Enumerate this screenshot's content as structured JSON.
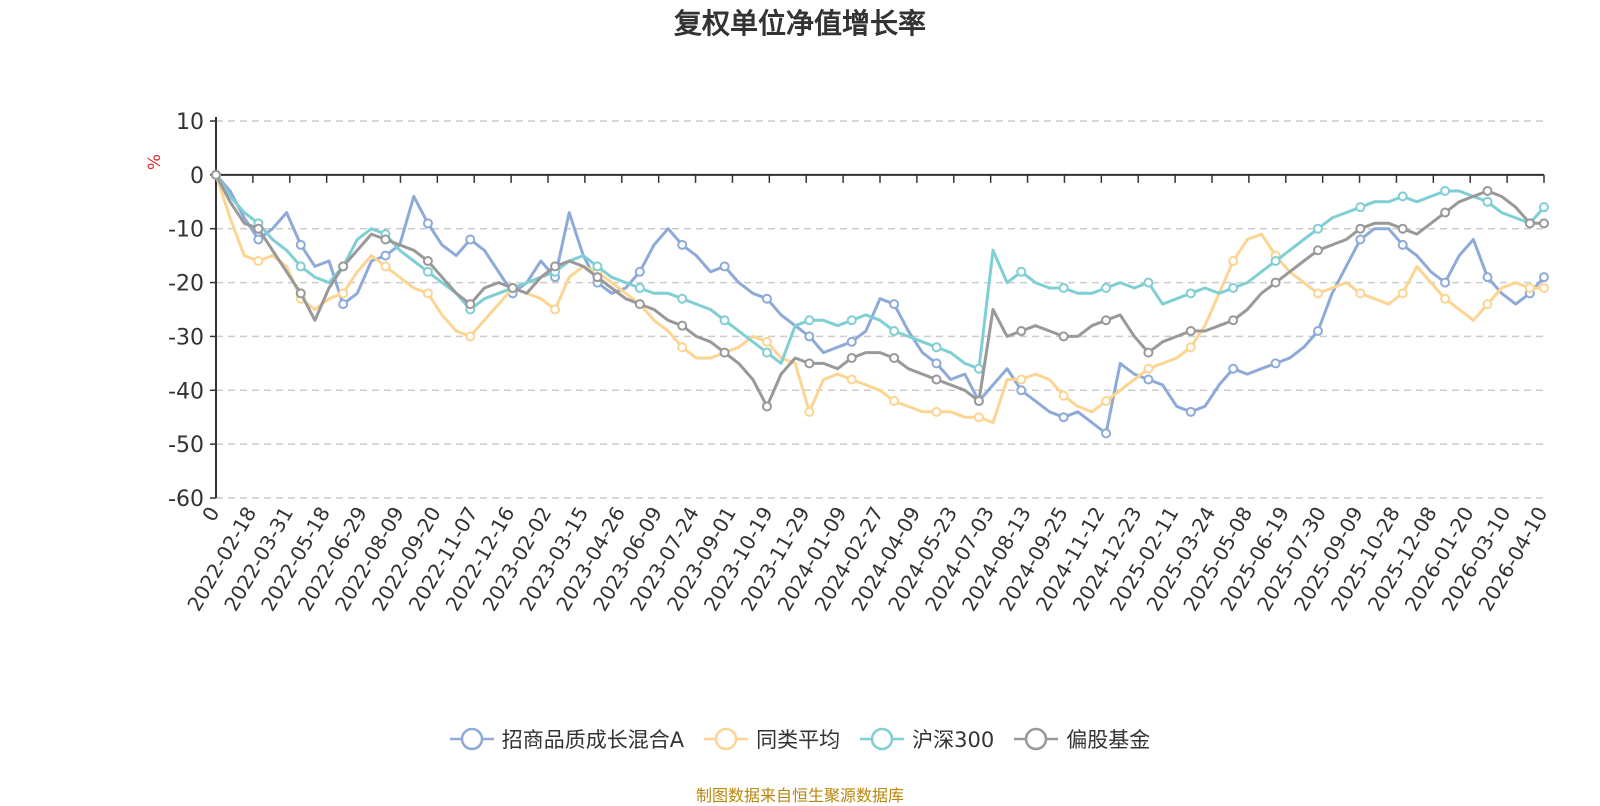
{
  "chart_data": {
    "type": "line",
    "title": "复权单位净值增长率",
    "ylabel": "%",
    "ylim": [
      -60,
      10
    ],
    "yticks": [
      10,
      0,
      -10,
      -20,
      -30,
      -40,
      -50,
      -60
    ],
    "x_start_label": "0",
    "x_tick_labels": [
      "2022-02-18",
      "2022-03-31",
      "2022-05-18",
      "2022-06-29",
      "2022-08-09",
      "2022-09-20",
      "2022-11-07",
      "2022-12-16",
      "2023-02-02",
      "2023-03-15",
      "2023-04-26",
      "2023-06-09",
      "2023-07-24",
      "2023-09-01",
      "2023-10-19",
      "2023-11-29",
      "2024-01-09",
      "2024-02-27",
      "2024-04-09",
      "2024-05-23",
      "2024-07-03",
      "2024-08-13",
      "2024-09-25",
      "2024-11-12",
      "2024-12-23",
      "2025-02-11",
      "2025-03-24",
      "2025-05-08",
      "2025-06-19",
      "2025-07-30",
      "2025-09-09",
      "2025-10-28",
      "2025-12-08",
      "2026-01-20",
      "2026-03-10",
      "2026-04-10"
    ],
    "grid": true,
    "legend_position": "bottom",
    "series": [
      {
        "name": "招商品质成长混合A",
        "color": "#8eaad9",
        "values": [
          0,
          -3,
          -8,
          -12,
          -10,
          -7,
          -13,
          -17,
          -16,
          -24,
          -22,
          -16,
          -15,
          -13,
          -4,
          -9,
          -13,
          -15,
          -12,
          -14,
          -18,
          -22,
          -20,
          -16,
          -19,
          -7,
          -15,
          -20,
          -22,
          -21,
          -18,
          -13,
          -10,
          -13,
          -15,
          -18,
          -17,
          -20,
          -22,
          -23,
          -26,
          -28,
          -30,
          -33,
          -32,
          -31,
          -29,
          -23,
          -24,
          -29,
          -33,
          -35,
          -38,
          -37,
          -42,
          -39,
          -36,
          -40,
          -42,
          -44,
          -45,
          -44,
          -46,
          -48,
          -35,
          -37,
          -38,
          -39,
          -43,
          -44,
          -43,
          -39,
          -36,
          -37,
          -36,
          -35,
          -34,
          -32,
          -29,
          -22,
          -17,
          -12,
          -10,
          -10,
          -13,
          -15,
          -18,
          -20,
          -15,
          -12,
          -19,
          -22,
          -24,
          -22,
          -19
        ]
      },
      {
        "name": "同类平均",
        "color": "#fcd592",
        "values": [
          0,
          -8,
          -15,
          -16,
          -15,
          -17,
          -23,
          -25,
          -23,
          -22,
          -18,
          -15,
          -17,
          -19,
          -21,
          -22,
          -26,
          -29,
          -30,
          -27,
          -24,
          -21,
          -22,
          -23,
          -25,
          -19,
          -17,
          -18,
          -20,
          -22,
          -24,
          -27,
          -29,
          -32,
          -34,
          -34,
          -33,
          -32,
          -30,
          -31,
          -34,
          -35,
          -44,
          -38,
          -37,
          -38,
          -39,
          -40,
          -42,
          -43,
          -44,
          -44,
          -44,
          -45,
          -45,
          -46,
          -38,
          -38,
          -37,
          -38,
          -41,
          -43,
          -44,
          -42,
          -40,
          -38,
          -36,
          -35,
          -34,
          -32,
          -28,
          -22,
          -16,
          -12,
          -11,
          -15,
          -18,
          -20,
          -22,
          -21,
          -20,
          -22,
          -23,
          -24,
          -22,
          -17,
          -20,
          -23,
          -25,
          -27,
          -24,
          -21,
          -20,
          -21,
          -21
        ]
      },
      {
        "name": "沪深300",
        "color": "#7fcfd4",
        "values": [
          0,
          -4,
          -7,
          -9,
          -12,
          -14,
          -17,
          -19,
          -20,
          -17,
          -12,
          -10,
          -11,
          -14,
          -16,
          -18,
          -20,
          -22,
          -25,
          -23,
          -22,
          -21,
          -20,
          -19,
          -18,
          -16,
          -15,
          -17,
          -19,
          -20,
          -21,
          -22,
          -22,
          -23,
          -24,
          -25,
          -27,
          -29,
          -31,
          -33,
          -35,
          -28,
          -27,
          -27,
          -28,
          -27,
          -26,
          -27,
          -29,
          -30,
          -31,
          -32,
          -33,
          -35,
          -36,
          -14,
          -20,
          -18,
          -20,
          -21,
          -21,
          -22,
          -22,
          -21,
          -20,
          -21,
          -20,
          -24,
          -23,
          -22,
          -21,
          -22,
          -21,
          -20,
          -18,
          -16,
          -14,
          -12,
          -10,
          -8,
          -7,
          -6,
          -5,
          -5,
          -4,
          -5,
          -4,
          -3,
          -3,
          -4,
          -5,
          -7,
          -8,
          -9,
          -6
        ]
      },
      {
        "name": "偏股基金",
        "color": "#999999",
        "values": [
          0,
          -5,
          -9,
          -10,
          -14,
          -18,
          -22,
          -27,
          -21,
          -17,
          -14,
          -11,
          -12,
          -13,
          -14,
          -16,
          -19,
          -22,
          -24,
          -21,
          -20,
          -21,
          -22,
          -19,
          -17,
          -16,
          -17,
          -19,
          -21,
          -23,
          -24,
          -25,
          -27,
          -28,
          -30,
          -31,
          -33,
          -35,
          -38,
          -43,
          -37,
          -34,
          -35,
          -35,
          -36,
          -34,
          -33,
          -33,
          -34,
          -36,
          -37,
          -38,
          -39,
          -40,
          -42,
          -25,
          -30,
          -29,
          -28,
          -29,
          -30,
          -30,
          -28,
          -27,
          -26,
          -30,
          -33,
          -31,
          -30,
          -29,
          -29,
          -28,
          -27,
          -25,
          -22,
          -20,
          -18,
          -16,
          -14,
          -13,
          -12,
          -10,
          -9,
          -9,
          -10,
          -11,
          -9,
          -7,
          -5,
          -4,
          -3,
          -4,
          -6,
          -9,
          -9
        ]
      }
    ]
  },
  "source_note": "制图数据来自恒生聚源数据库",
  "source_color": "#b8860b"
}
